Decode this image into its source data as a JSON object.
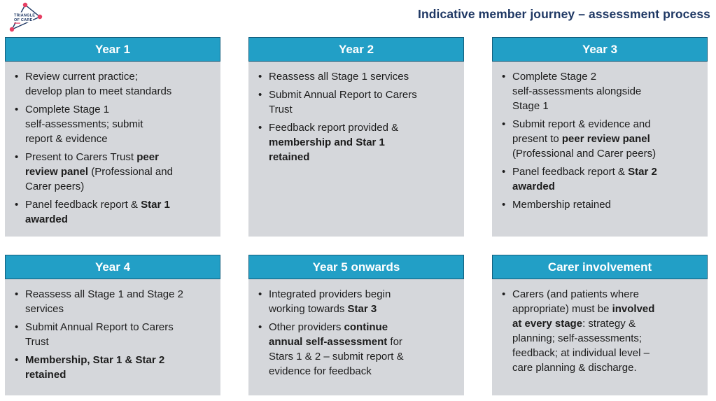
{
  "page": {
    "title": "Indicative member journey – assessment process"
  },
  "logo": {
    "name": "triangle-of-care-logo",
    "line1": "TRIANGLE",
    "line2": "OF CARE"
  },
  "colors": {
    "header_bg": "#229fc6",
    "header_border": "#135f7e",
    "body_bg": "#d5d7db",
    "navy": "#1f3864",
    "text": "#1c1c1c",
    "dot": "#e63f63"
  },
  "cards": [
    {
      "title": "Year 1",
      "bullets": [
        [
          {
            "t": "Review current practice;\ndevelop plan to meet standards"
          }
        ],
        [
          {
            "t": "Complete Stage 1\nself-assessments; submit\nreport & evidence"
          }
        ],
        [
          {
            "t": "Present to Carers Trust "
          },
          {
            "t": "peer\nreview panel",
            "b": true
          },
          {
            "t": " (Professional and\nCarer peers)"
          }
        ],
        [
          {
            "t": "Panel feedback report & "
          },
          {
            "t": "Star 1\nawarded",
            "b": true
          }
        ]
      ]
    },
    {
      "title": "Year 2",
      "bullets": [
        [
          {
            "t": "Reassess all Stage 1 services"
          }
        ],
        [
          {
            "t": "Submit Annual Report to Carers\nTrust"
          }
        ],
        [
          {
            "t": "Feedback report provided &\n"
          },
          {
            "t": "membership and Star 1\nretained",
            "b": true
          }
        ]
      ]
    },
    {
      "title": "Year 3",
      "bullets": [
        [
          {
            "t": "Complete Stage 2\nself-assessments alongside\nStage 1"
          }
        ],
        [
          {
            "t": "Submit report & evidence and\npresent to "
          },
          {
            "t": "peer review panel",
            "b": true
          },
          {
            "t": "\n(Professional and Carer peers)"
          }
        ],
        [
          {
            "t": "Panel feedback report & "
          },
          {
            "t": "Star 2\nawarded",
            "b": true
          }
        ],
        [
          {
            "t": "Membership retained"
          }
        ]
      ]
    },
    {
      "title": "Year 4",
      "bullets": [
        [
          {
            "t": "Reassess all Stage 1 and Stage 2\nservices"
          }
        ],
        [
          {
            "t": "Submit Annual Report to Carers\nTrust"
          }
        ],
        [
          {
            "t": "Membership, Star 1 & Star 2\nretained",
            "b": true
          }
        ]
      ]
    },
    {
      "title": "Year 5 onwards",
      "bullets": [
        [
          {
            "t": "Integrated providers begin\nworking towards "
          },
          {
            "t": "Star 3",
            "b": true
          }
        ],
        [
          {
            "t": "Other providers "
          },
          {
            "t": "continue\nannual self-assessment",
            "b": true
          },
          {
            "t": " for\nStars 1 & 2 – submit report &\nevidence for feedback"
          }
        ]
      ]
    },
    {
      "title": "Carer involvement",
      "bullets": [
        [
          {
            "t": "Carers (and patients where\nappropriate) must be "
          },
          {
            "t": "involved\nat every stage",
            "b": true
          },
          {
            "t": ": strategy &\nplanning; self-assessments;\nfeedback; at individual level –\ncare planning & discharge."
          }
        ]
      ]
    }
  ]
}
